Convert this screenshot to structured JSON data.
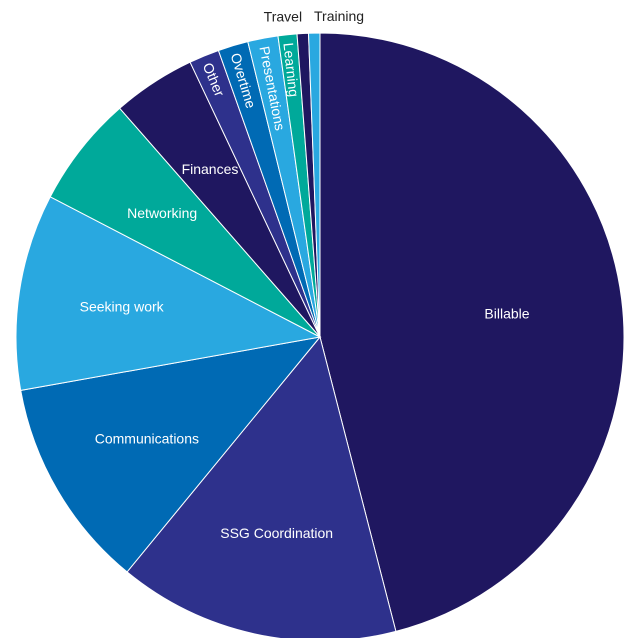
{
  "chart_data": {
    "type": "pie",
    "start_angle_deg": 0,
    "direction": "clockwise",
    "slices": [
      {
        "label": "Billable",
        "value": 45.8,
        "color": "#1f1760",
        "label_placement": "inside"
      },
      {
        "label": "SSG Coordination",
        "value": 14.9,
        "color": "#2e318c",
        "label_placement": "inside"
      },
      {
        "label": "Communications",
        "value": 11.2,
        "color": "#006ab4",
        "label_placement": "inside"
      },
      {
        "label": "Seeking work",
        "value": 10.4,
        "color": "#29a8e0",
        "label_placement": "inside"
      },
      {
        "label": "Networking",
        "value": 5.9,
        "color": "#00a99a",
        "label_placement": "inside"
      },
      {
        "label": "Finances",
        "value": 4.4,
        "color": "#1f1760",
        "label_placement": "inside"
      },
      {
        "label": "Other",
        "value": 1.6,
        "color": "#2e318c",
        "label_placement": "inside-radial"
      },
      {
        "label": "Overtime",
        "value": 1.6,
        "color": "#006ab4",
        "label_placement": "inside-radial"
      },
      {
        "label": "Presentations",
        "value": 1.6,
        "color": "#29a8e0",
        "label_placement": "inside-radial"
      },
      {
        "label": "Learning",
        "value": 1.0,
        "color": "#00a99a",
        "label_placement": "inside-radial"
      },
      {
        "label": "Travel",
        "value": 0.6,
        "color": "#1f1760",
        "label_placement": "outside"
      },
      {
        "label": "Training",
        "value": 0.6,
        "color": "#29a8e0",
        "label_placement": "outside"
      }
    ]
  }
}
